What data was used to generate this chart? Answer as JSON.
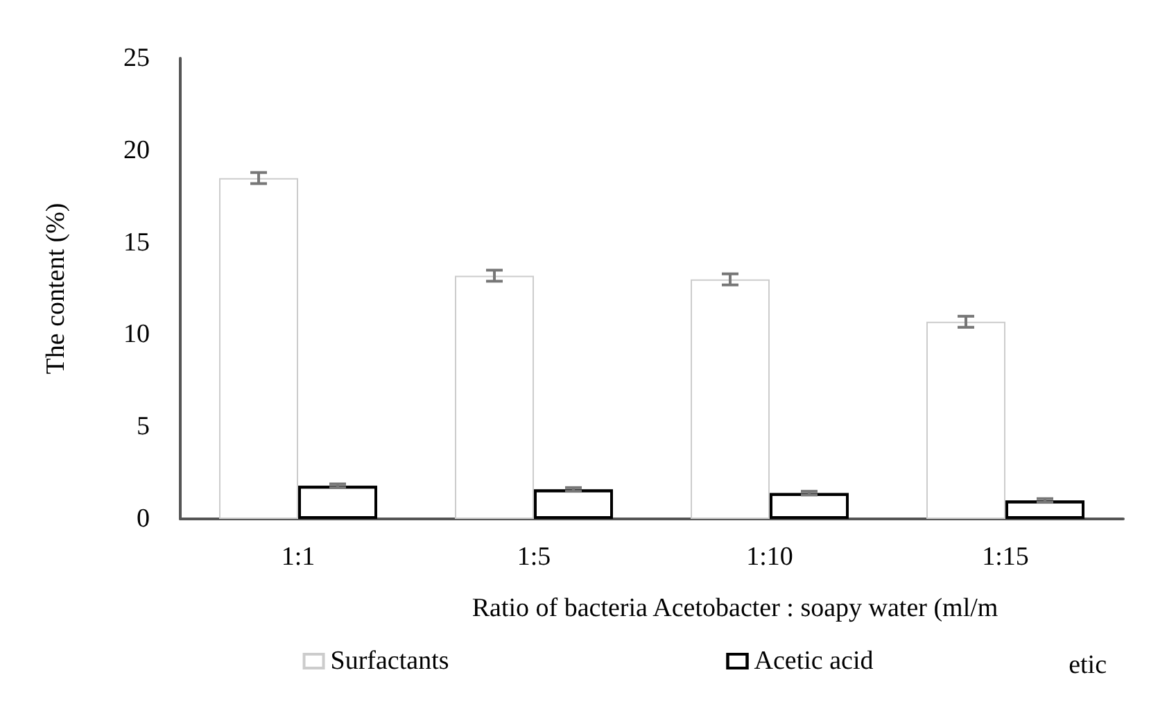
{
  "chart_data": {
    "type": "bar",
    "xlabel": "Ratio of bacteria Acetobacter : soapy water (ml/m",
    "ylabel": "The content (%)",
    "categories": [
      "1:1",
      "1:5",
      "1:10",
      "1:15"
    ],
    "series": [
      {
        "name": "Surfactants",
        "color": "#ffffff",
        "values": [
          18.5,
          13.2,
          13.0,
          10.7
        ],
        "errors": [
          0.3,
          0.3,
          0.3,
          0.3
        ]
      },
      {
        "name": "Acetic acid",
        "color": "#ffffff",
        "values": [
          1.8,
          1.6,
          1.4,
          1.0
        ],
        "errors": [
          0.1,
          0.1,
          0.1,
          0.1
        ]
      }
    ],
    "ylim": [
      0,
      25
    ],
    "yticks": [
      0,
      5,
      10,
      15,
      20,
      25
    ],
    "grid": false,
    "legend": "bottom",
    "annotations": [
      "etic"
    ]
  }
}
